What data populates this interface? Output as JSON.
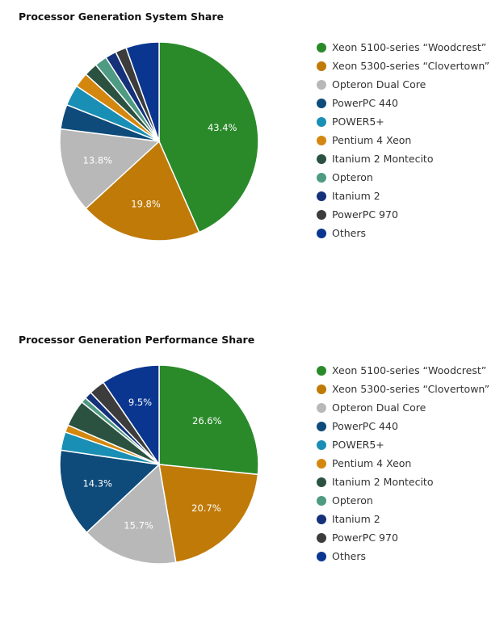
{
  "legend_labels": [
    "Xeon 5100-series “Woodcrest”",
    "Xeon 5300-series “Clovertown”",
    "Opteron Dual Core",
    "PowerPC 440",
    "POWER5+",
    "Pentium 4 Xeon",
    "Itanium 2 Montecito",
    "Opteron",
    "Itanium 2",
    "PowerPC 970",
    "Others"
  ],
  "colors": [
    "#2a8a2a",
    "#c07a08",
    "#b8b8b8",
    "#0e4b7a",
    "#1a8fb5",
    "#d4870f",
    "#2b5240",
    "#4e9a82",
    "#14317a",
    "#3c3c3c",
    "#0a3690"
  ],
  "chart_data": [
    {
      "type": "pie",
      "title": "Processor Generation System Share",
      "categories": [
        "Xeon 5100-series “Woodcrest”",
        "Xeon 5300-series “Clovertown”",
        "Opteron Dual Core",
        "PowerPC 440",
        "POWER5+",
        "Pentium 4 Xeon",
        "Itanium 2 Montecito",
        "Opteron",
        "Itanium 2",
        "PowerPC 970",
        "Others"
      ],
      "values": [
        43.4,
        19.8,
        13.8,
        4.0,
        3.4,
        2.4,
        2.2,
        2.0,
        1.8,
        1.8,
        5.4
      ],
      "labels": [
        "43.4%",
        "19.8%",
        "13.8%",
        "",
        "",
        "",
        "",
        "",
        "",
        "",
        ""
      ],
      "legend": "right"
    },
    {
      "type": "pie",
      "title": "Processor Generation Performance Share",
      "categories": [
        "Xeon 5100-series “Woodcrest”",
        "Xeon 5300-series “Clovertown”",
        "Opteron Dual Core",
        "PowerPC 440",
        "POWER5+",
        "Pentium 4 Xeon",
        "Itanium 2 Montecito",
        "Opteron",
        "Itanium 2",
        "PowerPC 970",
        "Others"
      ],
      "values": [
        26.6,
        20.7,
        15.7,
        14.3,
        3.0,
        1.2,
        4.3,
        0.9,
        1.2,
        2.6,
        9.5
      ],
      "labels": [
        "26.6%",
        "20.7%",
        "15.7%",
        "14.3%",
        "",
        "",
        "",
        "",
        "",
        "",
        "9.5%"
      ],
      "legend": "right"
    }
  ]
}
